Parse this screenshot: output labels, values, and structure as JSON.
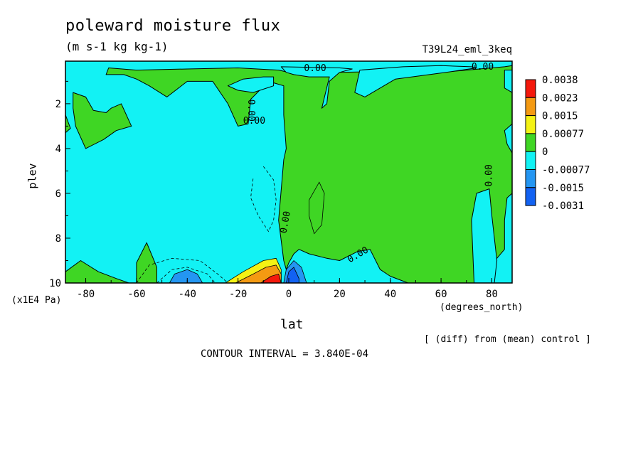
{
  "header": {
    "title": "poleward moisture flux",
    "subtitle": "(m s-1 kg kg-1)",
    "run_name": "T39L24_eml_3keq"
  },
  "footer": {
    "note": "[ (diff) from (mean) control ]",
    "contour_interval": "CONTOUR INTERVAL = 3.840E-04"
  },
  "colors": {
    "red": "#f4180c",
    "orange": "#f49a12",
    "yellow": "#f4f214",
    "green": "#3fd624",
    "cyan": "#12f2f4",
    "light_blue": "#2496f2",
    "blue": "#1262f2"
  },
  "chart_data": {
    "type": "heatmap",
    "title": "poleward moisture flux",
    "xlabel": "lat",
    "x_unit": "(degrees_north)",
    "ylabel": "plev",
    "y_unit": "(x1E4 Pa)",
    "xlim": [
      -88,
      88
    ],
    "ylim": [
      0.1,
      10
    ],
    "y_inverted": true,
    "x_ticks": [
      -80,
      -60,
      -40,
      -20,
      0,
      20,
      40,
      60,
      80
    ],
    "y_ticks": [
      2,
      4,
      6,
      8,
      10
    ],
    "contour_labels": [
      "0.00",
      "0.00",
      "0.00",
      "0.00",
      "0.00",
      "0.00",
      "0.00"
    ],
    "colorbar": {
      "levels": [
        "0.0038",
        "0.0023",
        "0.0015",
        "0.00077",
        "0",
        "-0.00077",
        "-0.0015",
        "-0.0031"
      ],
      "colors": [
        "#f4180c",
        "#f49a12",
        "#f4f214",
        "#3fd624",
        "#12f2f4",
        "#2496f2",
        "#1262f2"
      ]
    },
    "regions": [
      {
        "sign": "positive",
        "level": "0 to 0.00077",
        "color": "green",
        "points": [
          [
            -88,
            9.5
          ],
          [
            -82,
            9
          ],
          [
            -75,
            9.5
          ],
          [
            -68,
            9.8
          ],
          [
            -63,
            10
          ],
          [
            -88,
            10
          ]
        ]
      },
      {
        "sign": "positive",
        "level": "0 to 0.00077",
        "color": "green",
        "points": [
          [
            -60,
            10
          ],
          [
            -60,
            9.1
          ],
          [
            -56,
            8.2
          ],
          [
            -52,
            9.3
          ],
          [
            -52,
            10
          ]
        ]
      },
      {
        "sign": "positive",
        "level": "0 to 0.00077",
        "color": "green",
        "points": [
          [
            -85,
            1.5
          ],
          [
            -80,
            1.7
          ],
          [
            -77,
            2.3
          ],
          [
            -72,
            2.4
          ],
          [
            -70,
            2.2
          ],
          [
            -66,
            2.0
          ],
          [
            -62,
            3.0
          ],
          [
            -68,
            3.2
          ],
          [
            -73,
            3.6
          ],
          [
            -80,
            4.0
          ],
          [
            -84,
            3.0
          ],
          [
            -85,
            2.2
          ]
        ]
      },
      {
        "sign": "positive",
        "level": "0 to 0.00077",
        "color": "green",
        "points": [
          [
            -88,
            2.5
          ],
          [
            -86,
            3.1
          ],
          [
            -88,
            3.3
          ]
        ]
      },
      {
        "sign": "positive",
        "level": "0 to 0.00077",
        "color": "green",
        "points": [
          [
            -71,
            0.4
          ],
          [
            -60,
            0.5
          ],
          [
            -40,
            0.45
          ],
          [
            -20,
            0.4
          ],
          [
            -4,
            0.5
          ],
          [
            0,
            0.6
          ],
          [
            10,
            0.55
          ],
          [
            20,
            0.6
          ],
          [
            40,
            0.55
          ],
          [
            60,
            0.6
          ],
          [
            70,
            0.5
          ],
          [
            85,
            0.35
          ],
          [
            88,
            0.3
          ],
          [
            88,
            2.9
          ],
          [
            85,
            3.2
          ],
          [
            86,
            3.8
          ],
          [
            88,
            4.2
          ],
          [
            88,
            6.0
          ],
          [
            86,
            6.2
          ],
          [
            85,
            7.2
          ],
          [
            85,
            8.5
          ],
          [
            82,
            8.9
          ],
          [
            80,
            9.5
          ],
          [
            80,
            10
          ],
          [
            47,
            10
          ],
          [
            40,
            9.7
          ],
          [
            36,
            9.4
          ],
          [
            32,
            8.5
          ],
          [
            27,
            8.6
          ],
          [
            20,
            9.0
          ],
          [
            15,
            8.9
          ],
          [
            8,
            8.7
          ],
          [
            4,
            8.5
          ],
          [
            2,
            8.7
          ],
          [
            0,
            9.1
          ],
          [
            -1,
            9.4
          ],
          [
            -2,
            9.0
          ],
          [
            -4,
            7.2
          ],
          [
            -2,
            4.5
          ],
          [
            -1,
            4.0
          ],
          [
            -2,
            2.5
          ],
          [
            -2,
            1.2
          ],
          [
            -8,
            1.0
          ],
          [
            -15,
            1.8
          ],
          [
            -16,
            2.9
          ],
          [
            -20,
            3.0
          ],
          [
            -24,
            2.0
          ],
          [
            -30,
            1.0
          ],
          [
            -40,
            1.0
          ],
          [
            -48,
            1.7
          ],
          [
            -55,
            1.2
          ],
          [
            -60,
            0.9
          ],
          [
            -65,
            0.7
          ],
          [
            -72,
            0.7
          ]
        ]
      },
      {
        "sign": "negative",
        "level": "0 to -0.00077",
        "color": "cyan",
        "points": [
          [
            -18,
            0.9
          ],
          [
            -10,
            0.8
          ],
          [
            -6,
            0.8
          ],
          [
            -6,
            1.2
          ],
          [
            -14,
            1.5
          ],
          [
            -20,
            1.4
          ],
          [
            -24,
            1.2
          ]
        ]
      },
      {
        "sign": "negative",
        "level": "0 to -0.00077",
        "color": "cyan",
        "points": [
          [
            -3,
            0.35
          ],
          [
            20,
            0.4
          ],
          [
            25,
            0.45
          ],
          [
            20,
            0.6
          ],
          [
            16,
            1.0
          ],
          [
            15,
            2.0
          ],
          [
            13,
            2.2
          ],
          [
            16,
            0.8
          ],
          [
            8,
            0.8
          ],
          [
            2,
            0.7
          ],
          [
            -1,
            0.6
          ]
        ]
      },
      {
        "sign": "negative",
        "level": "0 to -0.00077",
        "color": "cyan",
        "points": [
          [
            28,
            0.5
          ],
          [
            45,
            0.35
          ],
          [
            60,
            0.3
          ],
          [
            72,
            0.35
          ],
          [
            74,
            0.4
          ],
          [
            62,
            0.6
          ],
          [
            42,
            0.9
          ],
          [
            30,
            1.7
          ],
          [
            26,
            1.5
          ]
        ]
      },
      {
        "sign": "negative",
        "level": "0 to -0.00077",
        "color": "cyan",
        "points": [
          [
            85,
            0.5
          ],
          [
            88,
            0.5
          ],
          [
            88,
            1.5
          ],
          [
            85,
            1.3
          ]
        ]
      },
      {
        "sign": "negative",
        "level": "0 to -0.00077",
        "color": "cyan",
        "points": [
          [
            73,
            10
          ],
          [
            72,
            7.2
          ],
          [
            74,
            6.0
          ],
          [
            79,
            5.8
          ],
          [
            80,
            7.0
          ],
          [
            82,
            9.0
          ],
          [
            81,
            10
          ]
        ]
      },
      {
        "sign": "negative",
        "level": "-0.00077 to -0.0015",
        "color": "light_blue",
        "points": [
          [
            -47,
            10
          ],
          [
            -45,
            9.6
          ],
          [
            -40,
            9.4
          ],
          [
            -36,
            9.6
          ],
          [
            -34,
            10
          ]
        ]
      },
      {
        "sign": "negative",
        "level": "-0.00077 to -0.0015",
        "color": "light_blue",
        "points": [
          [
            -2,
            10
          ],
          [
            -1,
            9.4
          ],
          [
            2,
            9.0
          ],
          [
            5,
            9.3
          ],
          [
            7,
            10
          ]
        ]
      },
      {
        "sign": "negative",
        "level": "-0.0015 to -0.0031",
        "color": "blue",
        "points": [
          [
            -1,
            10
          ],
          [
            0,
            9.5
          ],
          [
            2,
            9.3
          ],
          [
            4,
            9.8
          ],
          [
            4,
            10
          ]
        ]
      },
      {
        "sign": "positive",
        "level": "0.00077 to 0.0015",
        "color": "yellow",
        "points": [
          [
            -25,
            10
          ],
          [
            -18,
            9.5
          ],
          [
            -10,
            9.0
          ],
          [
            -5,
            8.9
          ],
          [
            -3,
            9.4
          ],
          [
            -3,
            10
          ]
        ]
      },
      {
        "sign": "positive",
        "level": "0.0015 to 0.0023",
        "color": "orange",
        "points": [
          [
            -21,
            10
          ],
          [
            -14,
            9.6
          ],
          [
            -9,
            9.3
          ],
          [
            -5,
            9.2
          ],
          [
            -3,
            9.6
          ],
          [
            -3,
            10
          ]
        ]
      },
      {
        "sign": "positive",
        "level": "0.0023 to 0.0038",
        "color": "red",
        "points": [
          [
            -11,
            10
          ],
          [
            -7,
            9.7
          ],
          [
            -4,
            9.6
          ],
          [
            -3,
            10
          ]
        ]
      }
    ]
  }
}
